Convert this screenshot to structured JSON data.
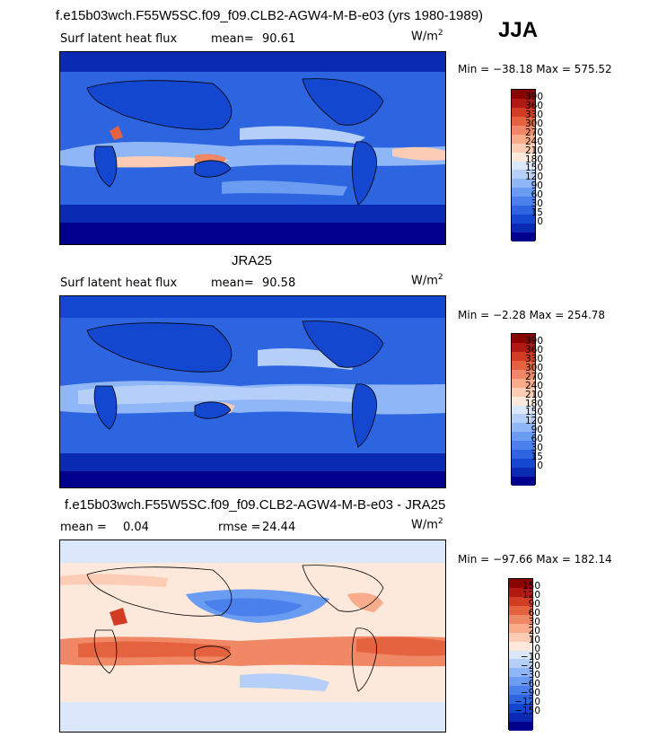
{
  "header": {
    "title": "f.e15b03wch.F55W5SC.f09_f09.CLB2-AGW4-M-B-e03 (yrs 1980-1989)",
    "season": "JJA"
  },
  "colors": {
    "abs_scale": [
      "#00008c",
      "#0a2ab4",
      "#1447cf",
      "#2d64e0",
      "#4a80ec",
      "#6a9cf2",
      "#8fb6f6",
      "#b5cff9",
      "#dbe8fc",
      "#fde8dc",
      "#fcccb4",
      "#f8ac8c",
      "#f08866",
      "#e4623e",
      "#d23c22",
      "#b01a12",
      "#8a0404"
    ],
    "diff_scale": [
      "#00008c",
      "#0a2ab4",
      "#1447cf",
      "#2d64e0",
      "#4a80ec",
      "#6a9cf2",
      "#8fb6f6",
      "#b5cff9",
      "#dbe8fc",
      "#fde8dc",
      "#fcccb4",
      "#f8ac8c",
      "#f08866",
      "#e4623e",
      "#d23c22",
      "#b01a12",
      "#8a0404"
    ]
  },
  "panels": [
    {
      "label": "",
      "left_text": "Surf latent heat flux",
      "mean_label": "mean=",
      "mean_value": "90.61",
      "unit_base": "W/m",
      "unit_exp": "2",
      "minmax": "Min = −38.18 Max = 575.52",
      "ticks": [
        "390",
        "360",
        "330",
        "300",
        "270",
        "240",
        "210",
        "180",
        "150",
        "120",
        "90",
        "60",
        "30",
        "15",
        "0"
      ]
    },
    {
      "label": "JRA25",
      "left_text": "Surf latent heat flux",
      "mean_label": "mean=",
      "mean_value": "90.58",
      "unit_base": "W/m",
      "unit_exp": "2",
      "minmax": "Min = −2.28 Max = 254.78",
      "ticks": [
        "390",
        "360",
        "330",
        "300",
        "270",
        "240",
        "210",
        "180",
        "150",
        "120",
        "90",
        "60",
        "30",
        "15",
        "0"
      ]
    },
    {
      "label": "f.e15b03wch.F55W5SC.f09_f09.CLB2-AGW4-M-B-e03 - JRA25",
      "left_text": "mean =",
      "mean_label": "",
      "mean_value": "0.04",
      "rmse_label": "rmse =",
      "rmse_value": "24.44",
      "unit_base": "W/m",
      "unit_exp": "2",
      "minmax": "Min = −97.66 Max = 182.14",
      "ticks": [
        "150",
        "120",
        "90",
        "60",
        "30",
        "20",
        "10",
        "0",
        "−10",
        "−20",
        "−30",
        "−60",
        "−90",
        "−120",
        "−150"
      ]
    }
  ]
}
